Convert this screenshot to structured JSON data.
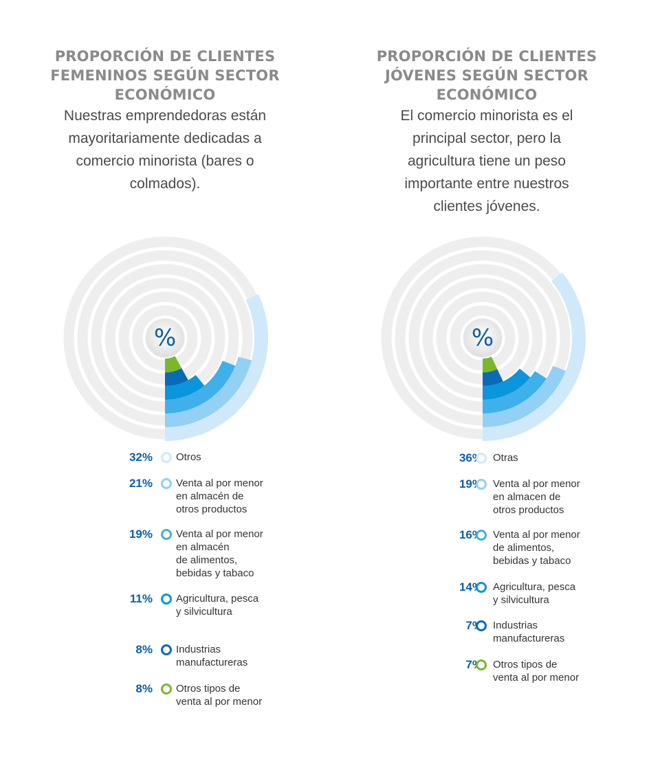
{
  "panels": [
    {
      "title": "PROPORCIÓN DE CLIENTES FEMENINOS SEGÚN SECTOR ECONÓMICO",
      "subtitle": "Nuestras emprendedoras están mayoritariamente dedicadas a comercio minorista (bares o colmados).",
      "center_symbol": "%"
    },
    {
      "title": "PROPORCIÓN DE CLIENTES JÓVENES SEGÚN SECTOR ECONÓMICO",
      "subtitle": "El comercio minorista es el principal sector, pero la agricultura tiene un peso importante entre nuestros clientes jóvenes.",
      "center_symbol": "%"
    }
  ],
  "chart_data": [
    {
      "type": "radial-bar",
      "title": "PROPORCIÓN DE CLIENTES FEMENINOS SEGÚN SECTOR ECONÓMICO",
      "series": [
        {
          "label": "Otros",
          "pct_label": "32%",
          "value": 32,
          "color": "#cfe9fa"
        },
        {
          "label": "Venta al por menor\nen almacén de\notros productos",
          "pct_label": "21%",
          "value": 21,
          "color": "#92d0f4"
        },
        {
          "label": "Venta al por menor\nen almacén\nde alimentos,\nbebidas y tabaco",
          "pct_label": "19%",
          "value": 19,
          "color": "#3fb0ea"
        },
        {
          "label": "Agricultura, pesca\ny silvicultura",
          "pct_label": "11%",
          "value": 11,
          "color": "#0a95dc"
        },
        {
          "label": "Industrias\nmanufactureras",
          "pct_label": "8%",
          "value": 8,
          "color": "#0a6ab6"
        },
        {
          "label": "Otros tipos de\nventa al por menor",
          "pct_label": "8%",
          "value": 8,
          "color": "#7ab82a"
        }
      ]
    },
    {
      "type": "radial-bar",
      "title": "PROPORCIÓN DE CLIENTES JÓVENES SEGÚN SECTOR ECONÓMICO",
      "series": [
        {
          "label": "Otras",
          "pct_label": "36%",
          "value": 36,
          "color": "#cfe9fa"
        },
        {
          "label": "Venta al por menor\nen almacen de\notros productos",
          "pct_label": "19%",
          "value": 19,
          "color": "#92d0f4"
        },
        {
          "label": "Venta al por menor\nde alimentos,\nbebidas y tabaco",
          "pct_label": "16%",
          "value": 16,
          "color": "#3fb0ea"
        },
        {
          "label": "Agricultura, pesca\ny silvicultura",
          "pct_label": "14%",
          "value": 14,
          "color": "#0a95dc"
        },
        {
          "label": "Industrias\nmanufactureras",
          "pct_label": "7%",
          "value": 7,
          "color": "#0a6ab6"
        },
        {
          "label": "Otros tipos de\nventa al por menor",
          "pct_label": "7%",
          "value": 7,
          "color": "#7ab82a"
        }
      ]
    }
  ]
}
